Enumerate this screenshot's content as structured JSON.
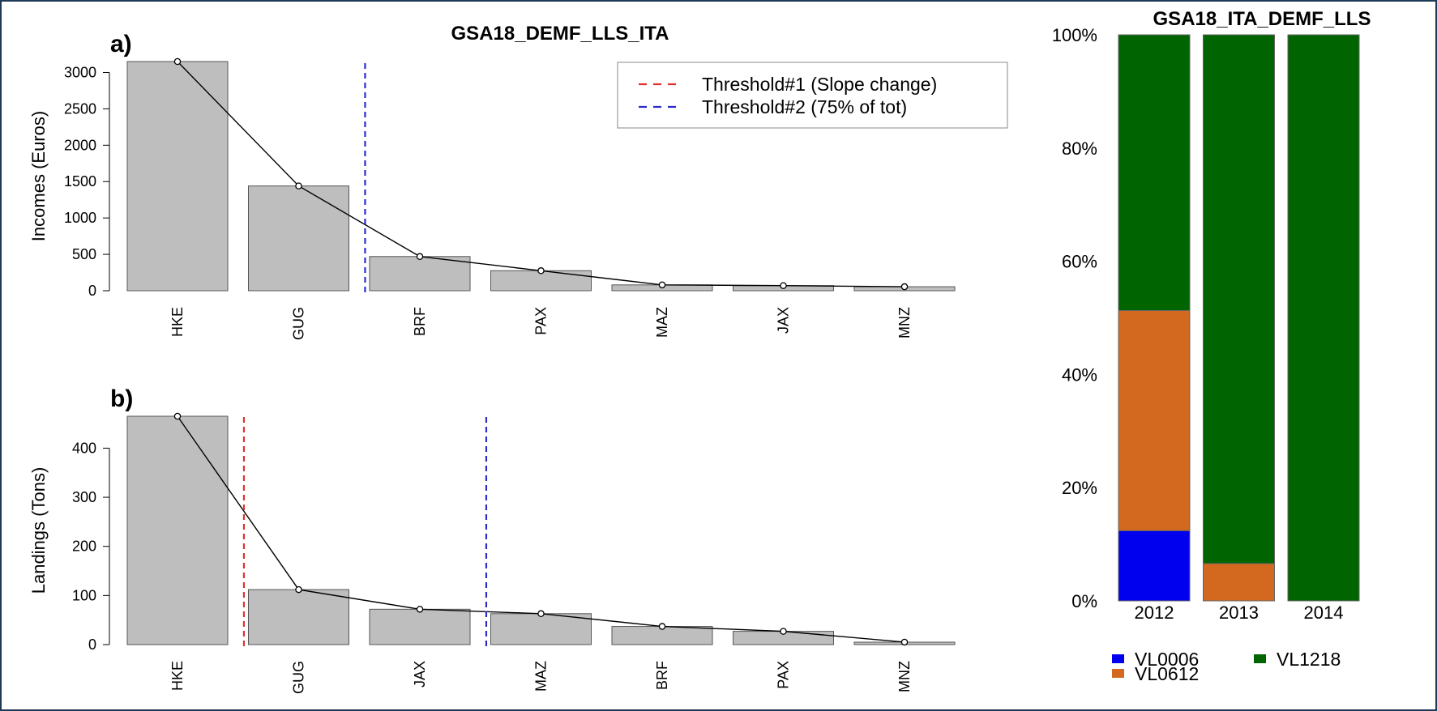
{
  "chart_data": [
    {
      "id": "a",
      "type": "bar",
      "title": "GSA18_DEMF_LLS_ITA",
      "panel_label": "a)",
      "ylabel": "Incomes (Euros)",
      "xlabel": "",
      "ylim": [
        0,
        3150
      ],
      "yticks": [
        0,
        500,
        1000,
        1500,
        2000,
        2500,
        3000
      ],
      "categories": [
        "HKE",
        "GUG",
        "BRF",
        "PAX",
        "MAZ",
        "JAX",
        "MNZ"
      ],
      "values": [
        3150,
        1440,
        470,
        275,
        80,
        70,
        55
      ],
      "line_overlay": true,
      "thresholds": [
        {
          "name": "Threshold#2 (75% of tot)",
          "after_index": 1.08,
          "color": "#2b2bcc"
        }
      ],
      "legend": {
        "placement": "top-right",
        "entries": [
          {
            "label": "Threshold#1 (Slope change)",
            "color": "#e03030"
          },
          {
            "label": "Threshold#2 (75% of tot)",
            "color": "#2b2bcc"
          }
        ]
      },
      "bar_color": "#bebebe"
    },
    {
      "id": "b",
      "type": "bar",
      "title": "",
      "panel_label": "b)",
      "ylabel": "Landings (Tons)",
      "xlabel": "",
      "ylim": [
        0,
        465
      ],
      "yticks": [
        0,
        100,
        200,
        300,
        400
      ],
      "categories": [
        "HKE",
        "GUG",
        "JAX",
        "MAZ",
        "BRF",
        "PAX",
        "MNZ"
      ],
      "values": [
        465,
        112,
        72,
        63,
        37,
        27,
        5
      ],
      "line_overlay": true,
      "thresholds": [
        {
          "name": "Threshold#1 (Slope change)",
          "after_index": 0.08,
          "color": "#e03030"
        },
        {
          "name": "Threshold#2 (75% of tot)",
          "after_index": 2.08,
          "color": "#2b2bcc"
        }
      ],
      "bar_color": "#bebebe"
    },
    {
      "id": "c",
      "type": "bar",
      "stacked": true,
      "percent": true,
      "title": "GSA18_ITA_DEMF_LLS",
      "categories": [
        "2012",
        "2013",
        "2014"
      ],
      "yticks": [
        "0%",
        "20%",
        "40%",
        "60%",
        "80%",
        "100%"
      ],
      "series": [
        {
          "name": "VL0006",
          "color": "#0000ee",
          "values": [
            12.4,
            0,
            0
          ]
        },
        {
          "name": "VL0612",
          "color": "#d2691e",
          "values": [
            38.9,
            6.6,
            0
          ]
        },
        {
          "name": "VL1218",
          "color": "#006400",
          "values": [
            48.7,
            93.4,
            100
          ]
        }
      ],
      "legend": {
        "placement": "bottom"
      }
    }
  ]
}
